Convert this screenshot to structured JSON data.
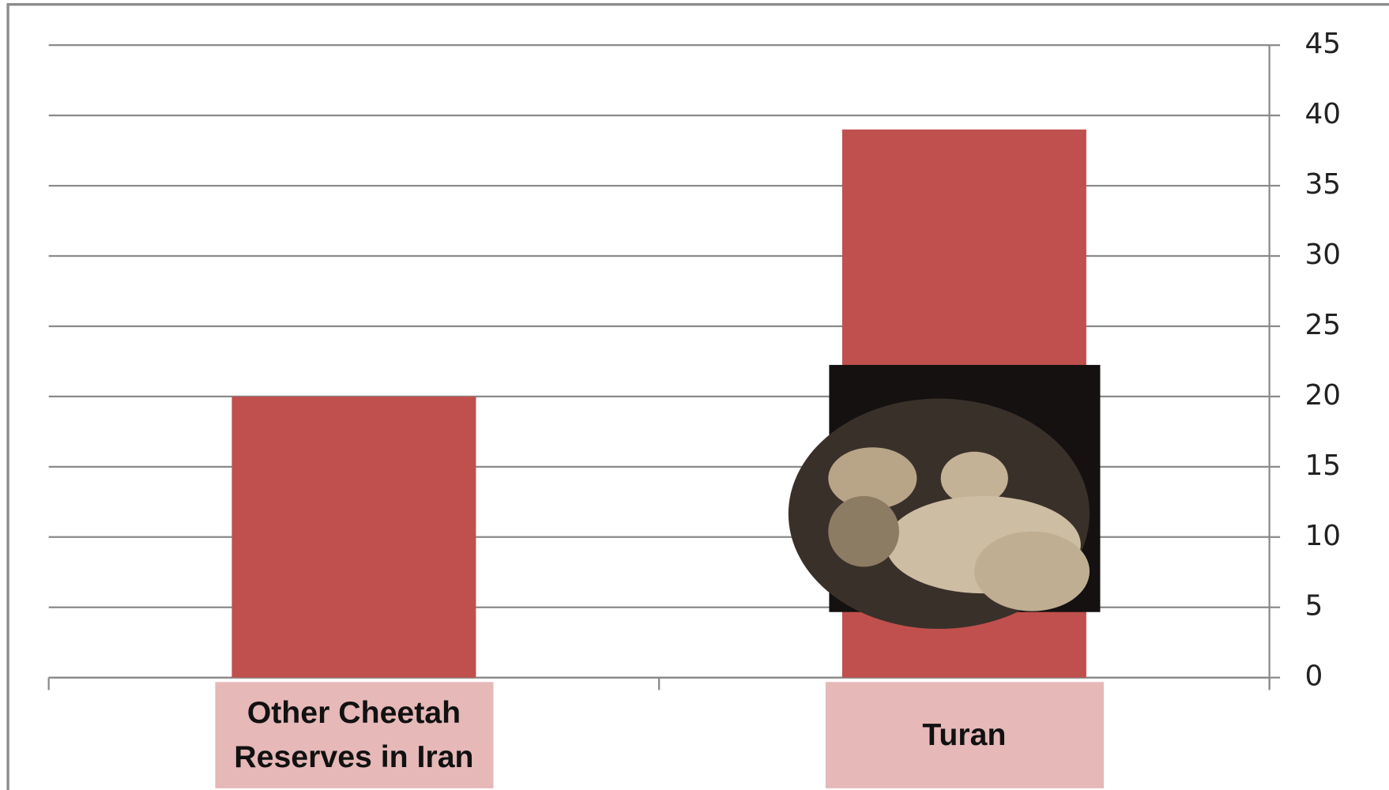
{
  "chart_data": {
    "type": "bar",
    "categories": [
      "Other Cheetah Reserves in Iran",
      "Turan"
    ],
    "values": [
      20,
      39
    ],
    "color": "#c0504d",
    "ylim": [
      0,
      45
    ],
    "yticks": [
      0,
      5,
      10,
      15,
      20,
      25,
      30,
      35,
      40,
      45
    ],
    "grid": true
  }
}
